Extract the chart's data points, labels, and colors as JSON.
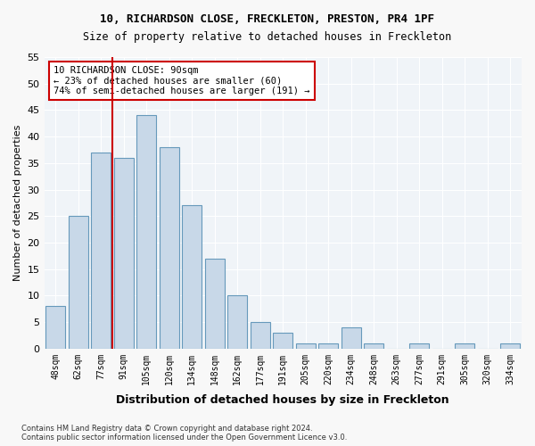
{
  "title1": "10, RICHARDSON CLOSE, FRECKLETON, PRESTON, PR4 1PF",
  "title2": "Size of property relative to detached houses in Freckleton",
  "xlabel": "Distribution of detached houses by size in Freckleton",
  "ylabel": "Number of detached properties",
  "categories": [
    "48sqm",
    "62sqm",
    "77sqm",
    "91sqm",
    "105sqm",
    "120sqm",
    "134sqm",
    "148sqm",
    "162sqm",
    "177sqm",
    "191sqm",
    "205sqm",
    "220sqm",
    "234sqm",
    "248sqm",
    "263sqm",
    "277sqm",
    "291sqm",
    "305sqm",
    "320sqm",
    "334sqm"
  ],
  "values": [
    8,
    25,
    37,
    36,
    44,
    38,
    27,
    17,
    10,
    5,
    3,
    1,
    1,
    4,
    1,
    0,
    1,
    0,
    1,
    0,
    1
  ],
  "bar_color": "#c8d8e8",
  "bar_edge_color": "#6699bb",
  "vline_x": 3,
  "vline_color": "#cc0000",
  "annotation_text": "10 RICHARDSON CLOSE: 90sqm\n← 23% of detached houses are smaller (60)\n74% of semi-detached houses are larger (191) →",
  "annotation_box_color": "#ffffff",
  "annotation_box_edge": "#cc0000",
  "bg_color": "#f0f4f8",
  "grid_color": "#ffffff",
  "ylim": [
    0,
    55
  ],
  "yticks": [
    0,
    5,
    10,
    15,
    20,
    25,
    30,
    35,
    40,
    45,
    50,
    55
  ],
  "footer": "Contains HM Land Registry data © Crown copyright and database right 2024.\nContains public sector information licensed under the Open Government Licence v3.0."
}
